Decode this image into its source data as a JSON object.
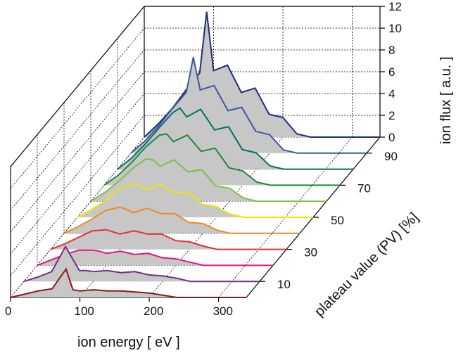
{
  "chart_data": {
    "type": "line",
    "title": "",
    "xlabel": "ion energy [ eV ]",
    "ylabel": "plateau value (PV) [%]",
    "zlabel": "ion flux [ a.u. ]",
    "x_ticks": [
      "0",
      "100",
      "200",
      "300"
    ],
    "y_ticks": [
      "10",
      "30",
      "50",
      "70",
      "90"
    ],
    "z_ticks": [
      "0",
      "2",
      "4",
      "6",
      "8",
      "10",
      "12"
    ],
    "xlim": [
      0,
      340
    ],
    "ylim": [
      0,
      100
    ],
    "zlim": [
      0,
      12
    ],
    "grid": true,
    "x": [
      0,
      20,
      40,
      60,
      80,
      90,
      100,
      120,
      140,
      160,
      180,
      200,
      220,
      240,
      260,
      280,
      300,
      320,
      340
    ],
    "series": [
      {
        "plateau": 0,
        "color": "#1d2d7a",
        "values": [
          0.0,
          1.2,
          2.6,
          4.3,
          5.9,
          11.5,
          6.1,
          6.6,
          4.1,
          4.5,
          2.1,
          1.8,
          0.3,
          0.0,
          0.0,
          0.0,
          0.0,
          0.0,
          0.0
        ]
      },
      {
        "plateau": 10,
        "color": "#3b57a6",
        "values": [
          0.0,
          1.1,
          2.5,
          4.1,
          5.6,
          8.8,
          5.8,
          6.2,
          3.9,
          4.2,
          2.0,
          1.7,
          0.3,
          0.0,
          0.0,
          0.0,
          0.0,
          0.0,
          0.0
        ]
      },
      {
        "plateau": 20,
        "color": "#006f6a",
        "values": [
          0.0,
          1.0,
          2.3,
          3.8,
          5.2,
          5.6,
          4.8,
          5.5,
          3.6,
          3.9,
          1.8,
          1.5,
          0.3,
          0.0,
          0.0,
          0.0,
          0.0,
          0.0,
          0.0
        ]
      },
      {
        "plateau": 30,
        "color": "#1a8a3a",
        "values": [
          0.0,
          0.9,
          2.1,
          3.5,
          4.6,
          4.7,
          4.0,
          4.6,
          3.1,
          3.4,
          1.6,
          1.3,
          0.3,
          0.0,
          0.0,
          0.0,
          0.0,
          0.0,
          0.0
        ]
      },
      {
        "plateau": 40,
        "color": "#7bc142",
        "values": [
          0.0,
          0.8,
          1.8,
          3.0,
          3.9,
          3.8,
          3.2,
          3.8,
          2.7,
          2.9,
          1.4,
          1.2,
          0.3,
          0.0,
          0.0,
          0.0,
          0.0,
          0.0,
          0.0
        ]
      },
      {
        "plateau": 50,
        "color": "#f4e500",
        "values": [
          0.0,
          0.7,
          1.5,
          2.6,
          3.1,
          2.9,
          2.5,
          3.0,
          2.2,
          2.3,
          1.2,
          1.0,
          0.3,
          0.0,
          0.0,
          0.0,
          0.0,
          0.0,
          0.0
        ]
      },
      {
        "plateau": 60,
        "color": "#f08a1c",
        "values": [
          0.0,
          0.6,
          1.3,
          2.1,
          2.4,
          2.2,
          1.9,
          2.3,
          1.8,
          1.8,
          1.0,
          0.9,
          0.3,
          0.0,
          0.0,
          0.0,
          0.0,
          0.0,
          0.0
        ]
      },
      {
        "plateau": 70,
        "color": "#e52f2f",
        "values": [
          0.0,
          0.5,
          1.1,
          1.7,
          1.8,
          1.6,
          1.4,
          1.7,
          1.4,
          1.4,
          0.8,
          0.7,
          0.3,
          0.0,
          0.0,
          0.0,
          0.0,
          0.0,
          0.0
        ]
      },
      {
        "plateau": 80,
        "color": "#e3147f",
        "values": [
          0.0,
          0.5,
          1.0,
          1.4,
          1.4,
          1.3,
          1.1,
          1.3,
          1.0,
          1.1,
          0.7,
          0.6,
          0.3,
          0.0,
          0.0,
          0.0,
          0.0,
          0.0,
          0.0
        ]
      },
      {
        "plateau": 90,
        "color": "#7a2a8c",
        "values": [
          0.0,
          0.4,
          0.9,
          3.2,
          1.0,
          1.0,
          0.9,
          1.0,
          0.8,
          0.9,
          0.6,
          0.5,
          0.3,
          0.0,
          0.0,
          0.0,
          0.0,
          0.0,
          0.0
        ]
      },
      {
        "plateau": 100,
        "color": "#8b1a1a",
        "values": [
          0.0,
          0.3,
          0.6,
          0.8,
          2.6,
          0.7,
          0.6,
          0.7,
          0.6,
          0.6,
          0.5,
          0.4,
          0.2,
          0.0,
          0.0,
          0.0,
          0.0,
          0.0,
          0.0
        ]
      }
    ],
    "fill_color": "#c7c7c7",
    "axis_color": "#000000",
    "grid_color": "#000000"
  }
}
